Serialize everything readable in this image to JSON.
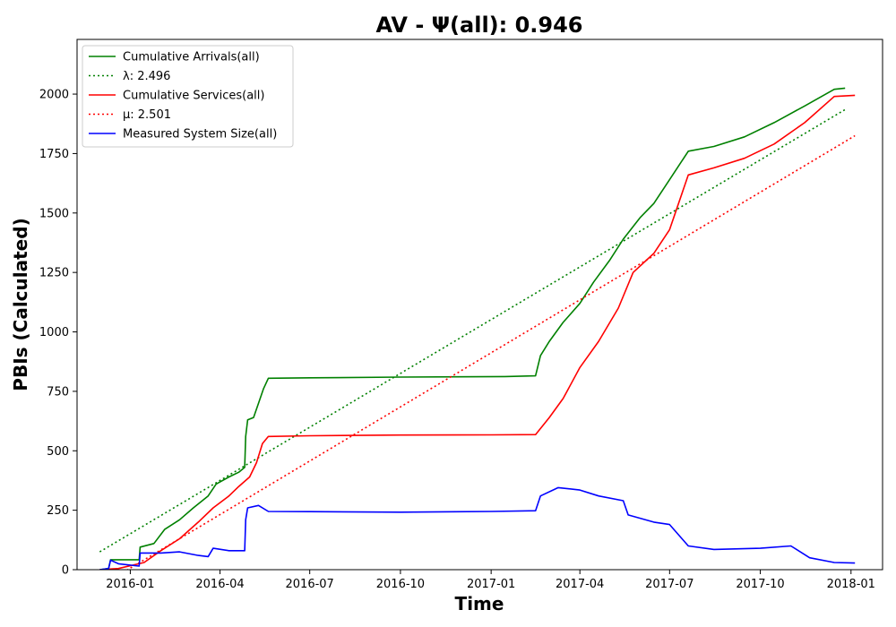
{
  "chart_data": {
    "type": "line",
    "title": "AV -  Ψ(all): 0.946",
    "xlabel": "Time",
    "ylabel": "PBIs (Calculated)",
    "xlim": [
      "2015-11-08",
      "2018-02-02"
    ],
    "ylim": [
      0,
      2230
    ],
    "grid": false,
    "legend_position": "top-left",
    "x_ticks": [
      "2016-01",
      "2016-04",
      "2016-07",
      "2016-10",
      "2017-01",
      "2017-04",
      "2017-07",
      "2017-10",
      "2018-01"
    ],
    "y_ticks": [
      0,
      250,
      500,
      750,
      1000,
      1250,
      1500,
      1750,
      2000
    ],
    "series": [
      {
        "name": "Cumulative Arrivals(all)",
        "style": "solid",
        "color": "#008000",
        "points": [
          [
            "2015-12-01",
            0
          ],
          [
            "2015-12-10",
            5
          ],
          [
            "2015-12-12",
            42
          ],
          [
            "2016-01-10",
            42
          ],
          [
            "2016-01-11",
            95
          ],
          [
            "2016-01-25",
            110
          ],
          [
            "2016-02-05",
            170
          ],
          [
            "2016-02-20",
            210
          ],
          [
            "2016-03-05",
            260
          ],
          [
            "2016-03-20",
            310
          ],
          [
            "2016-03-28",
            360
          ],
          [
            "2016-04-10",
            390
          ],
          [
            "2016-04-20",
            410
          ],
          [
            "2016-04-26",
            430
          ],
          [
            "2016-04-27",
            560
          ],
          [
            "2016-04-29",
            630
          ],
          [
            "2016-05-05",
            640
          ],
          [
            "2016-05-10",
            700
          ],
          [
            "2016-05-15",
            760
          ],
          [
            "2016-05-20",
            805
          ],
          [
            "2016-07-01",
            807
          ],
          [
            "2016-10-01",
            810
          ],
          [
            "2017-01-15",
            812
          ],
          [
            "2017-02-15",
            815
          ],
          [
            "2017-02-20",
            900
          ],
          [
            "2017-03-01",
            960
          ],
          [
            "2017-03-15",
            1040
          ],
          [
            "2017-04-01",
            1120
          ],
          [
            "2017-04-15",
            1210
          ],
          [
            "2017-05-01",
            1300
          ],
          [
            "2017-05-15",
            1390
          ],
          [
            "2017-06-01",
            1480
          ],
          [
            "2017-06-15",
            1540
          ],
          [
            "2017-07-01",
            1640
          ],
          [
            "2017-07-20",
            1760
          ],
          [
            "2017-08-15",
            1780
          ],
          [
            "2017-09-15",
            1820
          ],
          [
            "2017-10-15",
            1880
          ],
          [
            "2017-11-15",
            1950
          ],
          [
            "2017-12-15",
            2020
          ],
          [
            "2017-12-26",
            2025
          ]
        ]
      },
      {
        "name": "λ: 2.496",
        "style": "dotted",
        "color": "#008000",
        "points": [
          [
            "2015-12-01",
            75
          ],
          [
            "2017-12-26",
            1935
          ]
        ]
      },
      {
        "name": "Cumulative Services(all)",
        "style": "solid",
        "color": "#ff0000",
        "points": [
          [
            "2015-12-01",
            0
          ],
          [
            "2015-12-20",
            5
          ],
          [
            "2016-01-15",
            30
          ],
          [
            "2016-02-01",
            80
          ],
          [
            "2016-02-20",
            130
          ],
          [
            "2016-03-10",
            200
          ],
          [
            "2016-03-25",
            260
          ],
          [
            "2016-04-10",
            310
          ],
          [
            "2016-04-20",
            350
          ],
          [
            "2016-05-01",
            390
          ],
          [
            "2016-05-08",
            450
          ],
          [
            "2016-05-14",
            530
          ],
          [
            "2016-05-20",
            560
          ],
          [
            "2016-07-01",
            563
          ],
          [
            "2016-10-01",
            566
          ],
          [
            "2017-01-01",
            567
          ],
          [
            "2017-02-15",
            568
          ],
          [
            "2017-03-01",
            640
          ],
          [
            "2017-03-15",
            720
          ],
          [
            "2017-04-01",
            850
          ],
          [
            "2017-04-20",
            960
          ],
          [
            "2017-05-10",
            1100
          ],
          [
            "2017-05-25",
            1250
          ],
          [
            "2017-06-15",
            1330
          ],
          [
            "2017-07-01",
            1430
          ],
          [
            "2017-07-20",
            1660
          ],
          [
            "2017-08-15",
            1690
          ],
          [
            "2017-09-15",
            1730
          ],
          [
            "2017-10-15",
            1790
          ],
          [
            "2017-11-15",
            1880
          ],
          [
            "2017-12-15",
            1990
          ],
          [
            "2018-01-05",
            1995
          ]
        ]
      },
      {
        "name": "μ: 2.501",
        "style": "dotted",
        "color": "#ff0000",
        "points": [
          [
            "2015-12-01",
            -70
          ],
          [
            "2018-01-05",
            1825
          ]
        ]
      },
      {
        "name": "Measured System Size(all)",
        "style": "solid",
        "color": "#0000ff",
        "points": [
          [
            "2015-12-01",
            0
          ],
          [
            "2015-12-10",
            5
          ],
          [
            "2015-12-12",
            40
          ],
          [
            "2015-12-20",
            25
          ],
          [
            "2016-01-10",
            15
          ],
          [
            "2016-01-11",
            70
          ],
          [
            "2016-02-01",
            70
          ],
          [
            "2016-02-20",
            75
          ],
          [
            "2016-03-10",
            60
          ],
          [
            "2016-03-20",
            55
          ],
          [
            "2016-03-25",
            90
          ],
          [
            "2016-04-10",
            80
          ],
          [
            "2016-04-26",
            80
          ],
          [
            "2016-04-27",
            210
          ],
          [
            "2016-04-29",
            260
          ],
          [
            "2016-05-10",
            270
          ],
          [
            "2016-05-20",
            245
          ],
          [
            "2016-07-01",
            244
          ],
          [
            "2016-10-01",
            242
          ],
          [
            "2017-01-01",
            245
          ],
          [
            "2017-02-15",
            248
          ],
          [
            "2017-02-20",
            310
          ],
          [
            "2017-03-10",
            345
          ],
          [
            "2017-04-01",
            335
          ],
          [
            "2017-04-20",
            310
          ],
          [
            "2017-05-15",
            290
          ],
          [
            "2017-05-20",
            230
          ],
          [
            "2017-06-15",
            200
          ],
          [
            "2017-07-01",
            190
          ],
          [
            "2017-07-20",
            100
          ],
          [
            "2017-08-15",
            85
          ],
          [
            "2017-10-01",
            90
          ],
          [
            "2017-11-01",
            100
          ],
          [
            "2017-11-20",
            50
          ],
          [
            "2017-12-15",
            30
          ],
          [
            "2018-01-05",
            28
          ]
        ]
      }
    ]
  }
}
